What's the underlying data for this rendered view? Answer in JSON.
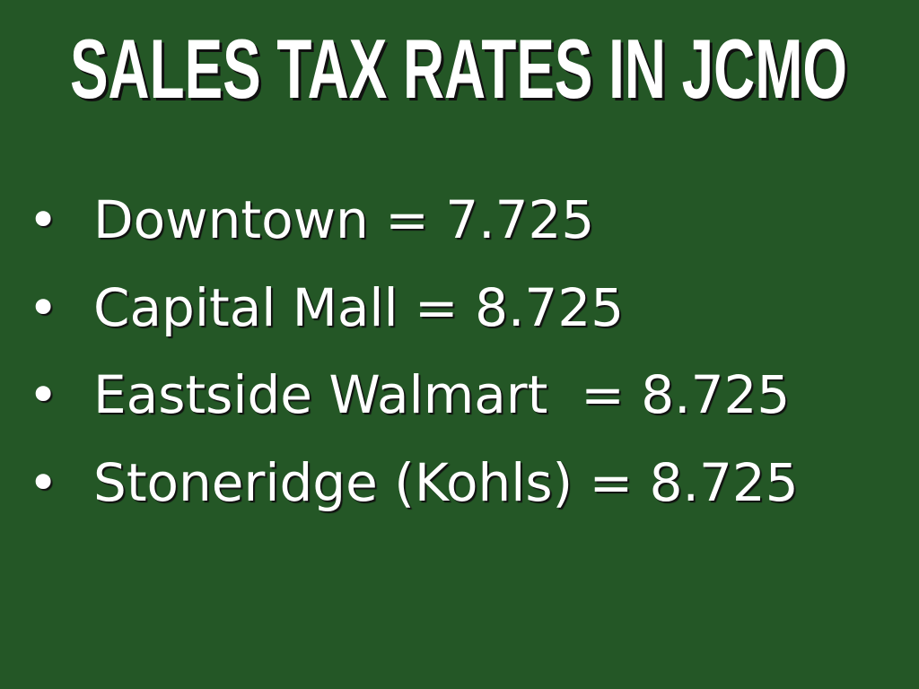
{
  "title": "SALES TAX RATES IN JCMO",
  "bullets": [
    "Downtown = 7.725",
    "Capital Mall = 8.725",
    "Eastside Walmart  = 8.725",
    "Stoneridge (Kohls) = 8.725"
  ]
}
